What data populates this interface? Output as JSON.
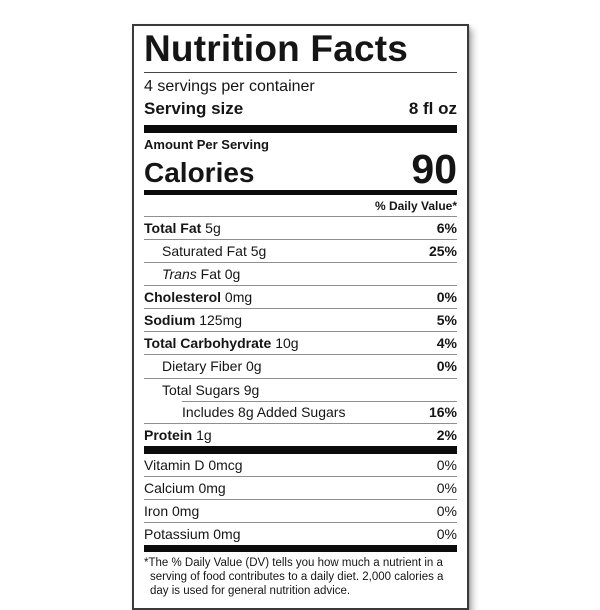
{
  "label": {
    "title": "Nutrition Facts",
    "servings_per_container": "4 servings per container",
    "serving_size_label": "Serving size",
    "serving_size_value": "8 fl oz",
    "amount_per_serving": "Amount Per Serving",
    "calories_label": "Calories",
    "calories_value": "90",
    "daily_value_header": "% Daily Value*",
    "rows": [
      {
        "b": "Total Fat",
        "t": " 5g",
        "dv": "6%"
      },
      {
        "t": "Saturated Fat 5g",
        "dv": "25%"
      },
      {
        "i": "Trans",
        "t": " Fat 0g",
        "dv": ""
      },
      {
        "b": "Cholesterol",
        "t": " 0mg",
        "dv": "0%"
      },
      {
        "b": "Sodium",
        "t": " 125mg",
        "dv": "5%"
      },
      {
        "b": "Total Carbohydrate",
        "t": " 10g",
        "dv": "4%"
      },
      {
        "t": "Dietary Fiber 0g",
        "dv": "0%"
      },
      {
        "t": "Total Sugars 9g",
        "dv": ""
      },
      {
        "t": "Includes 8g Added Sugars",
        "dv": "16%"
      },
      {
        "b": "Protein",
        "t": " 1g",
        "dv": "2%"
      }
    ],
    "vitamins": [
      {
        "t": "Vitamin D 0mcg",
        "dv": "0%"
      },
      {
        "t": "Calcium 0mg",
        "dv": "0%"
      },
      {
        "t": "Iron 0mg",
        "dv": "0%"
      },
      {
        "t": "Potassium 0mg",
        "dv": "0%"
      }
    ],
    "footnote": "*The % Daily Value (DV) tells you how much a nutrient in a serving of food contributes to a daily diet. 2,000 calories a day is used for general nutrition advice."
  }
}
